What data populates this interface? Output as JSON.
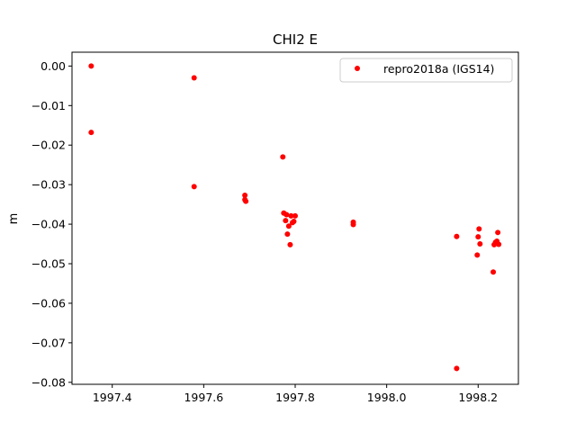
{
  "chart_data": {
    "type": "scatter",
    "title": "CHI2 E",
    "xlabel": "",
    "ylabel": "m",
    "xlim": [
      1997.312,
      1998.288
    ],
    "ylim": [
      -0.0805,
      0.0035
    ],
    "x_ticks": [
      1997.4,
      1997.6,
      1997.8,
      1998.0,
      1998.2
    ],
    "x_tick_labels": [
      "1997.4",
      "1997.6",
      "1997.8",
      "1998.0",
      "1998.2"
    ],
    "y_ticks": [
      0.0,
      -0.01,
      -0.02,
      -0.03,
      -0.04,
      -0.05,
      -0.06,
      -0.07,
      -0.08
    ],
    "y_tick_labels": [
      "0.00",
      "−0.01",
      "−0.02",
      "−0.03",
      "−0.04",
      "−0.05",
      "−0.06",
      "−0.07",
      "−0.08"
    ],
    "grid": false,
    "legend_position": "top-right",
    "series": [
      {
        "name": "repro2018a (IGS14)",
        "color": "#ff0000",
        "marker": "circle",
        "points": [
          [
            1997.354,
            0.0
          ],
          [
            1997.354,
            -0.0168
          ],
          [
            1997.579,
            -0.003
          ],
          [
            1997.579,
            -0.0305
          ],
          [
            1997.69,
            -0.0327
          ],
          [
            1997.69,
            -0.0338
          ],
          [
            1997.692,
            -0.0342
          ],
          [
            1997.773,
            -0.023
          ],
          [
            1997.775,
            -0.0372
          ],
          [
            1997.779,
            -0.0391
          ],
          [
            1997.781,
            -0.0376
          ],
          [
            1997.783,
            -0.0425
          ],
          [
            1997.786,
            -0.0405
          ],
          [
            1997.789,
            -0.0452
          ],
          [
            1997.791,
            -0.0379
          ],
          [
            1997.794,
            -0.0396
          ],
          [
            1997.797,
            -0.0393
          ],
          [
            1997.8,
            -0.0379
          ],
          [
            1997.927,
            -0.0395
          ],
          [
            1997.927,
            -0.0401
          ],
          [
            1998.153,
            -0.0431
          ],
          [
            1998.153,
            -0.0765
          ],
          [
            1998.198,
            -0.0478
          ],
          [
            1998.2,
            -0.0432
          ],
          [
            1998.202,
            -0.0412
          ],
          [
            1998.204,
            -0.045
          ],
          [
            1998.233,
            -0.0521
          ],
          [
            1998.235,
            -0.0452
          ],
          [
            1998.238,
            -0.0446
          ],
          [
            1998.241,
            -0.0443
          ],
          [
            1998.243,
            -0.0421
          ],
          [
            1998.245,
            -0.0451
          ]
        ]
      }
    ]
  }
}
